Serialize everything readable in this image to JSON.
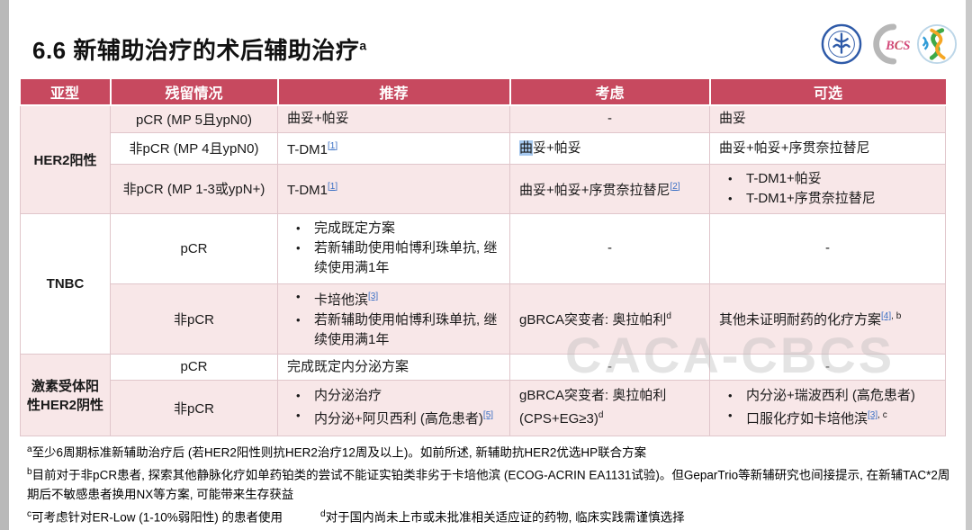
{
  "page": {
    "title": "6.6 新辅助治疗的术后辅助治疗",
    "title_superscript": "a",
    "watermark": "CACA-CBCS"
  },
  "logos": [
    {
      "name": "china-anti-cancer-association-logo"
    },
    {
      "name": "bcs-logo",
      "text": "BCS"
    },
    {
      "name": "society-swirl-logo"
    }
  ],
  "colors": {
    "header_bg": "#C7495F",
    "row_pink": "#F8E7E8",
    "row_white": "#FFFFFF",
    "link_blue": "#3A6FC4",
    "highlight_blue": "#A6C9F0"
  },
  "table": {
    "headers": [
      "亚型",
      "残留情况",
      "推荐",
      "考虑",
      "可选"
    ],
    "groups": [
      {
        "subtype": "HER2阳性",
        "subtype_bg": "pink",
        "rows": [
          {
            "bg": "pink",
            "residual": "pCR (MP 5且ypN0)",
            "recommend": {
              "lines": [
                {
                  "parts": [
                    {
                      "t": "曲妥+帕妥"
                    }
                  ]
                }
              ]
            },
            "consider": {
              "align": "center",
              "lines": [
                {
                  "parts": [
                    {
                      "t": "-"
                    }
                  ]
                }
              ]
            },
            "optional": {
              "lines": [
                {
                  "parts": [
                    {
                      "t": "曲妥"
                    }
                  ]
                }
              ]
            }
          },
          {
            "bg": "white",
            "residual": "非pCR (MP 4且ypN0)",
            "recommend": {
              "lines": [
                {
                  "parts": [
                    {
                      "t": "T-DM1"
                    },
                    {
                      "t": "[1]",
                      "sup": true,
                      "link": true
                    }
                  ]
                }
              ]
            },
            "consider": {
              "lines": [
                {
                  "parts": [
                    {
                      "t": "曲",
                      "hl": true
                    },
                    {
                      "t": "妥+帕妥"
                    }
                  ]
                }
              ]
            },
            "optional": {
              "lines": [
                {
                  "parts": [
                    {
                      "t": "曲妥+帕妥+序贯奈拉替尼"
                    }
                  ]
                }
              ]
            }
          },
          {
            "bg": "pink",
            "residual": "非pCR (MP 1-3或ypN+)",
            "recommend": {
              "lines": [
                {
                  "parts": [
                    {
                      "t": "T-DM1"
                    },
                    {
                      "t": "[1]",
                      "sup": true,
                      "link": true
                    }
                  ]
                }
              ]
            },
            "consider": {
              "lines": [
                {
                  "parts": [
                    {
                      "t": "曲妥+帕妥+序贯奈拉替尼"
                    },
                    {
                      "t": "[2]",
                      "sup": true,
                      "link": true
                    }
                  ]
                }
              ]
            },
            "optional": {
              "lines": [
                {
                  "bullet": true,
                  "parts": [
                    {
                      "t": "T-DM1+帕妥"
                    }
                  ]
                },
                {
                  "bullet": true,
                  "parts": [
                    {
                      "t": "T-DM1+序贯奈拉替尼"
                    }
                  ]
                }
              ]
            }
          }
        ]
      },
      {
        "subtype": "TNBC",
        "subtype_bg": "white",
        "rows": [
          {
            "bg": "white",
            "residual": "pCR",
            "recommend": {
              "lines": [
                {
                  "bullet": true,
                  "parts": [
                    {
                      "t": "完成既定方案"
                    }
                  ]
                },
                {
                  "bullet": true,
                  "parts": [
                    {
                      "t": "若新辅助使用帕博利珠单抗, 继续使用满1年"
                    }
                  ]
                }
              ]
            },
            "consider": {
              "align": "center",
              "lines": [
                {
                  "parts": [
                    {
                      "t": "-"
                    }
                  ]
                }
              ]
            },
            "optional": {
              "align": "center",
              "lines": [
                {
                  "parts": [
                    {
                      "t": "-"
                    }
                  ]
                }
              ]
            }
          },
          {
            "bg": "pink",
            "residual": "非pCR",
            "recommend": {
              "lines": [
                {
                  "bullet": true,
                  "parts": [
                    {
                      "t": "卡培他滨"
                    },
                    {
                      "t": "[3]",
                      "sup": true,
                      "link": true
                    }
                  ]
                },
                {
                  "bullet": true,
                  "parts": [
                    {
                      "t": "若新辅助使用帕博利珠单抗, 继续使用满1年"
                    }
                  ]
                }
              ]
            },
            "consider": {
              "lines": [
                {
                  "parts": [
                    {
                      "t": "gBRCA突变者: 奥拉帕利"
                    },
                    {
                      "t": "d",
                      "sup": true
                    }
                  ]
                }
              ]
            },
            "optional": {
              "lines": [
                {
                  "parts": [
                    {
                      "t": "其他未证明耐药的化疗方案"
                    },
                    {
                      "t": "[4]",
                      "sup": true,
                      "link": true
                    },
                    {
                      "t": ", b",
                      "sup": true
                    }
                  ]
                }
              ]
            }
          }
        ]
      },
      {
        "subtype": "激素受体阳性HER2阴性",
        "subtype_bg": "pink",
        "rows": [
          {
            "bg": "white",
            "residual": "pCR",
            "recommend": {
              "lines": [
                {
                  "parts": [
                    {
                      "t": "完成既定内分泌方案"
                    }
                  ]
                }
              ]
            },
            "consider": {
              "align": "center",
              "lines": [
                {
                  "parts": [
                    {
                      "t": "-"
                    }
                  ]
                }
              ]
            },
            "optional": {
              "align": "center",
              "lines": [
                {
                  "parts": [
                    {
                      "t": "-"
                    }
                  ]
                }
              ]
            }
          },
          {
            "bg": "pink",
            "residual": "非pCR",
            "recommend": {
              "lines": [
                {
                  "bullet": true,
                  "parts": [
                    {
                      "t": "内分泌治疗"
                    }
                  ]
                },
                {
                  "bullet": true,
                  "parts": [
                    {
                      "t": "内分泌+阿贝西利 (高危患者)"
                    },
                    {
                      "t": "[5]",
                      "sup": true,
                      "link": true
                    }
                  ]
                }
              ]
            },
            "consider": {
              "lines": [
                {
                  "parts": [
                    {
                      "t": "gBRCA突变者: 奥拉帕利 (CPS+EG≥3)"
                    },
                    {
                      "t": "d",
                      "sup": true
                    }
                  ]
                }
              ]
            },
            "optional": {
              "lines": [
                {
                  "bullet": true,
                  "parts": [
                    {
                      "t": "内分泌+瑞波西利 (高危患者)"
                    }
                  ]
                },
                {
                  "bullet": true,
                  "parts": [
                    {
                      "t": "口服化疗如卡培他滨"
                    },
                    {
                      "t": "[3]",
                      "sup": true,
                      "link": true
                    },
                    {
                      "t": ", c",
                      "sup": true
                    }
                  ]
                }
              ]
            }
          }
        ]
      }
    ]
  },
  "footnotes": [
    {
      "id": "a",
      "text": "至少6周期标准新辅助治疗后 (若HER2阳性则抗HER2治疗12周及以上)。如前所述, 新辅助抗HER2优选HP联合方案"
    },
    {
      "id": "b",
      "text": "目前对于非pCR患者, 探索其他静脉化疗如单药铂类的尝试不能证实铂类非劣于卡培他滨 (ECOG-ACRIN EA1131试验)。但GeparTrio等新辅研究也间接提示, 在新辅TAC*2周期后不敏感患者换用NX等方案, 可能带来生存获益"
    },
    {
      "id": "c",
      "text": "可考虑针对ER-Low (1-10%弱阳性) 的患者使用"
    },
    {
      "id": "d",
      "text": "对于国内尚未上市或未批准相关适应证的药物, 临床实践需谨慎选择"
    }
  ]
}
